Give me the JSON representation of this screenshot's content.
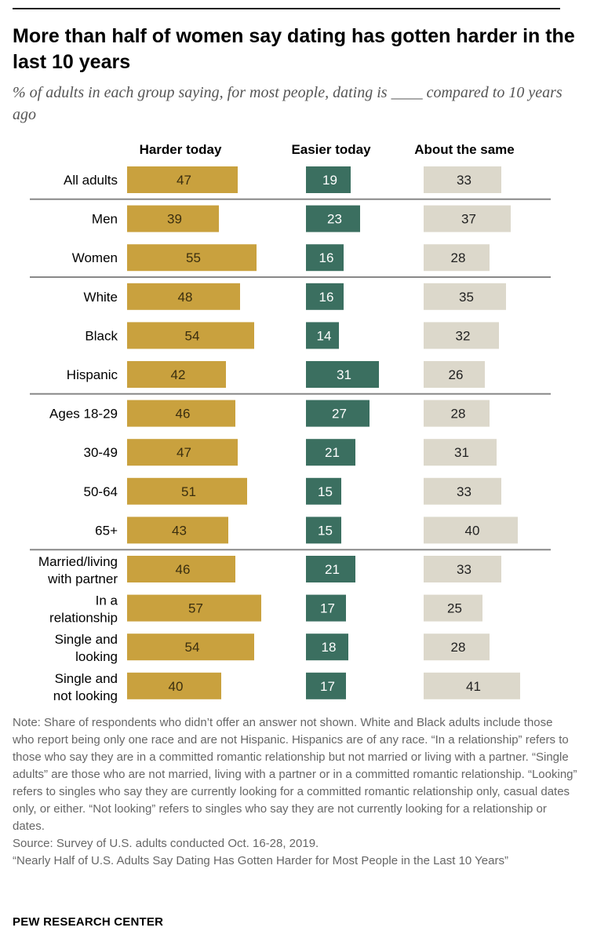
{
  "title": "More than half of women say dating has gotten harder in the last 10 years",
  "subtitle": "% of adults in each group saying, for most people, dating is ____ compared to 10 years ago",
  "chart_data": {
    "type": "bar",
    "orientation": "horizontal",
    "title": "More than half of women say dating has gotten harder in the last 10 years",
    "categories": [
      [
        "All adults"
      ],
      [
        "Men"
      ],
      [
        "Women"
      ],
      [
        "White"
      ],
      [
        "Black"
      ],
      [
        "Hispanic"
      ],
      [
        "Ages 18-29"
      ],
      [
        "30-49"
      ],
      [
        "50-64"
      ],
      [
        "65+"
      ],
      [
        "Married/living",
        "with partner"
      ],
      [
        "In a",
        "relationship"
      ],
      [
        "Single and",
        "looking"
      ],
      [
        "Single and",
        "not looking"
      ]
    ],
    "group_starts": [
      1,
      3,
      6,
      10
    ],
    "series": [
      {
        "name": "Harder today",
        "color": "#c9a13e",
        "label_color": "#3a2e0f",
        "values": [
          47,
          39,
          55,
          48,
          54,
          42,
          46,
          47,
          51,
          43,
          46,
          57,
          54,
          40
        ]
      },
      {
        "name": "Easier today",
        "color": "#3b6f60",
        "label_color": "#ffffff",
        "values": [
          19,
          23,
          16,
          16,
          14,
          31,
          27,
          21,
          15,
          15,
          21,
          17,
          18,
          17
        ]
      },
      {
        "name": "About the same",
        "color": "#dcd8cb",
        "label_color": "#222222",
        "values": [
          33,
          37,
          28,
          35,
          32,
          26,
          28,
          31,
          33,
          40,
          33,
          25,
          28,
          41
        ]
      }
    ],
    "xlabel": "",
    "ylabel": "",
    "unit": "%"
  },
  "notes": {
    "note": "Note: Share of respondents who didn’t offer an answer not shown. White and Black adults include those who report being only one race and are not Hispanic. Hispanics are of any race. “In a relationship” refers to those who say they are in a committed romantic relationship but not married or living with a partner. “Single adults” are those who are not married, living with a partner or in a committed romantic relationship. “Looking” refers to singles who say they are currently looking for a committed romantic relationship only, casual dates only, or either. “Not looking” refers to singles who say they are not currently looking for a relationship or dates.",
    "source": "Source: Survey of U.S. adults conducted Oct. 16-28, 2019.",
    "report": "“Nearly Half of U.S. Adults Say Dating Has Gotten Harder for Most People in the Last 10 Years”"
  },
  "source_org": "PEW RESEARCH CENTER"
}
